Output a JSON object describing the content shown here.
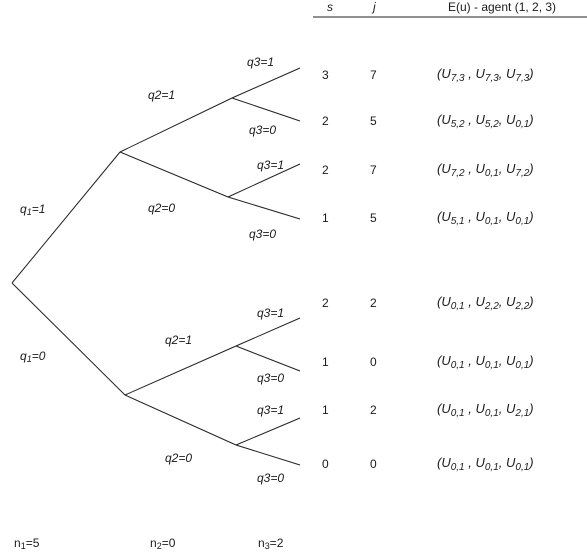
{
  "header": {
    "s_label": "s",
    "j_label": "j",
    "eu_label": "E(u) - agent (1, 2, 3)"
  },
  "level1": {
    "q1_1": {
      "name": "q",
      "sub": "1",
      "val": "=1"
    },
    "q1_0": {
      "name": "q",
      "sub": "1",
      "val": "=0"
    }
  },
  "level2": {
    "top_q2_1": "q2=1",
    "top_q2_0": "q2=0",
    "bot_q2_1": "q2=1",
    "bot_q2_0": "q2=0"
  },
  "level3": [
    "q3=1",
    "q3=0",
    "q3=1",
    "q3=0",
    "q3=1",
    "q3=0",
    "q3=1",
    "q3=0"
  ],
  "rows": [
    {
      "s": "3",
      "j": "7",
      "u": [
        {
          "a": "7,3"
        },
        {
          "a": "7,3"
        },
        {
          "a": "7,3"
        }
      ]
    },
    {
      "s": "2",
      "j": "5",
      "u": [
        {
          "a": "5,2"
        },
        {
          "a": "5,2"
        },
        {
          "a": "0,1"
        }
      ]
    },
    {
      "s": "2",
      "j": "7",
      "u": [
        {
          "a": "7,2"
        },
        {
          "a": "0,1"
        },
        {
          "a": "7,2"
        }
      ]
    },
    {
      "s": "1",
      "j": "5",
      "u": [
        {
          "a": "5,1"
        },
        {
          "a": "0,1"
        },
        {
          "a": "0,1"
        }
      ]
    },
    {
      "s": "2",
      "j": "2",
      "u": [
        {
          "a": "0,1"
        },
        {
          "a": "2,2"
        },
        {
          "a": "2,2"
        }
      ]
    },
    {
      "s": "1",
      "j": "0",
      "u": [
        {
          "a": "0,1"
        },
        {
          "a": "0,1"
        },
        {
          "a": "0,1"
        }
      ]
    },
    {
      "s": "1",
      "j": "2",
      "u": [
        {
          "a": "0,1"
        },
        {
          "a": "0,1"
        },
        {
          "a": "2,1"
        }
      ]
    },
    {
      "s": "0",
      "j": "0",
      "u": [
        {
          "a": "0,1"
        },
        {
          "a": "0,1"
        },
        {
          "a": "0,1"
        }
      ]
    }
  ],
  "footer": {
    "n1": {
      "name": "n",
      "sub": "1",
      "val": "=5"
    },
    "n2": {
      "name": "n",
      "sub": "2",
      "val": "=0"
    },
    "n3": {
      "name": "n",
      "sub": "3",
      "val": "=2"
    }
  }
}
